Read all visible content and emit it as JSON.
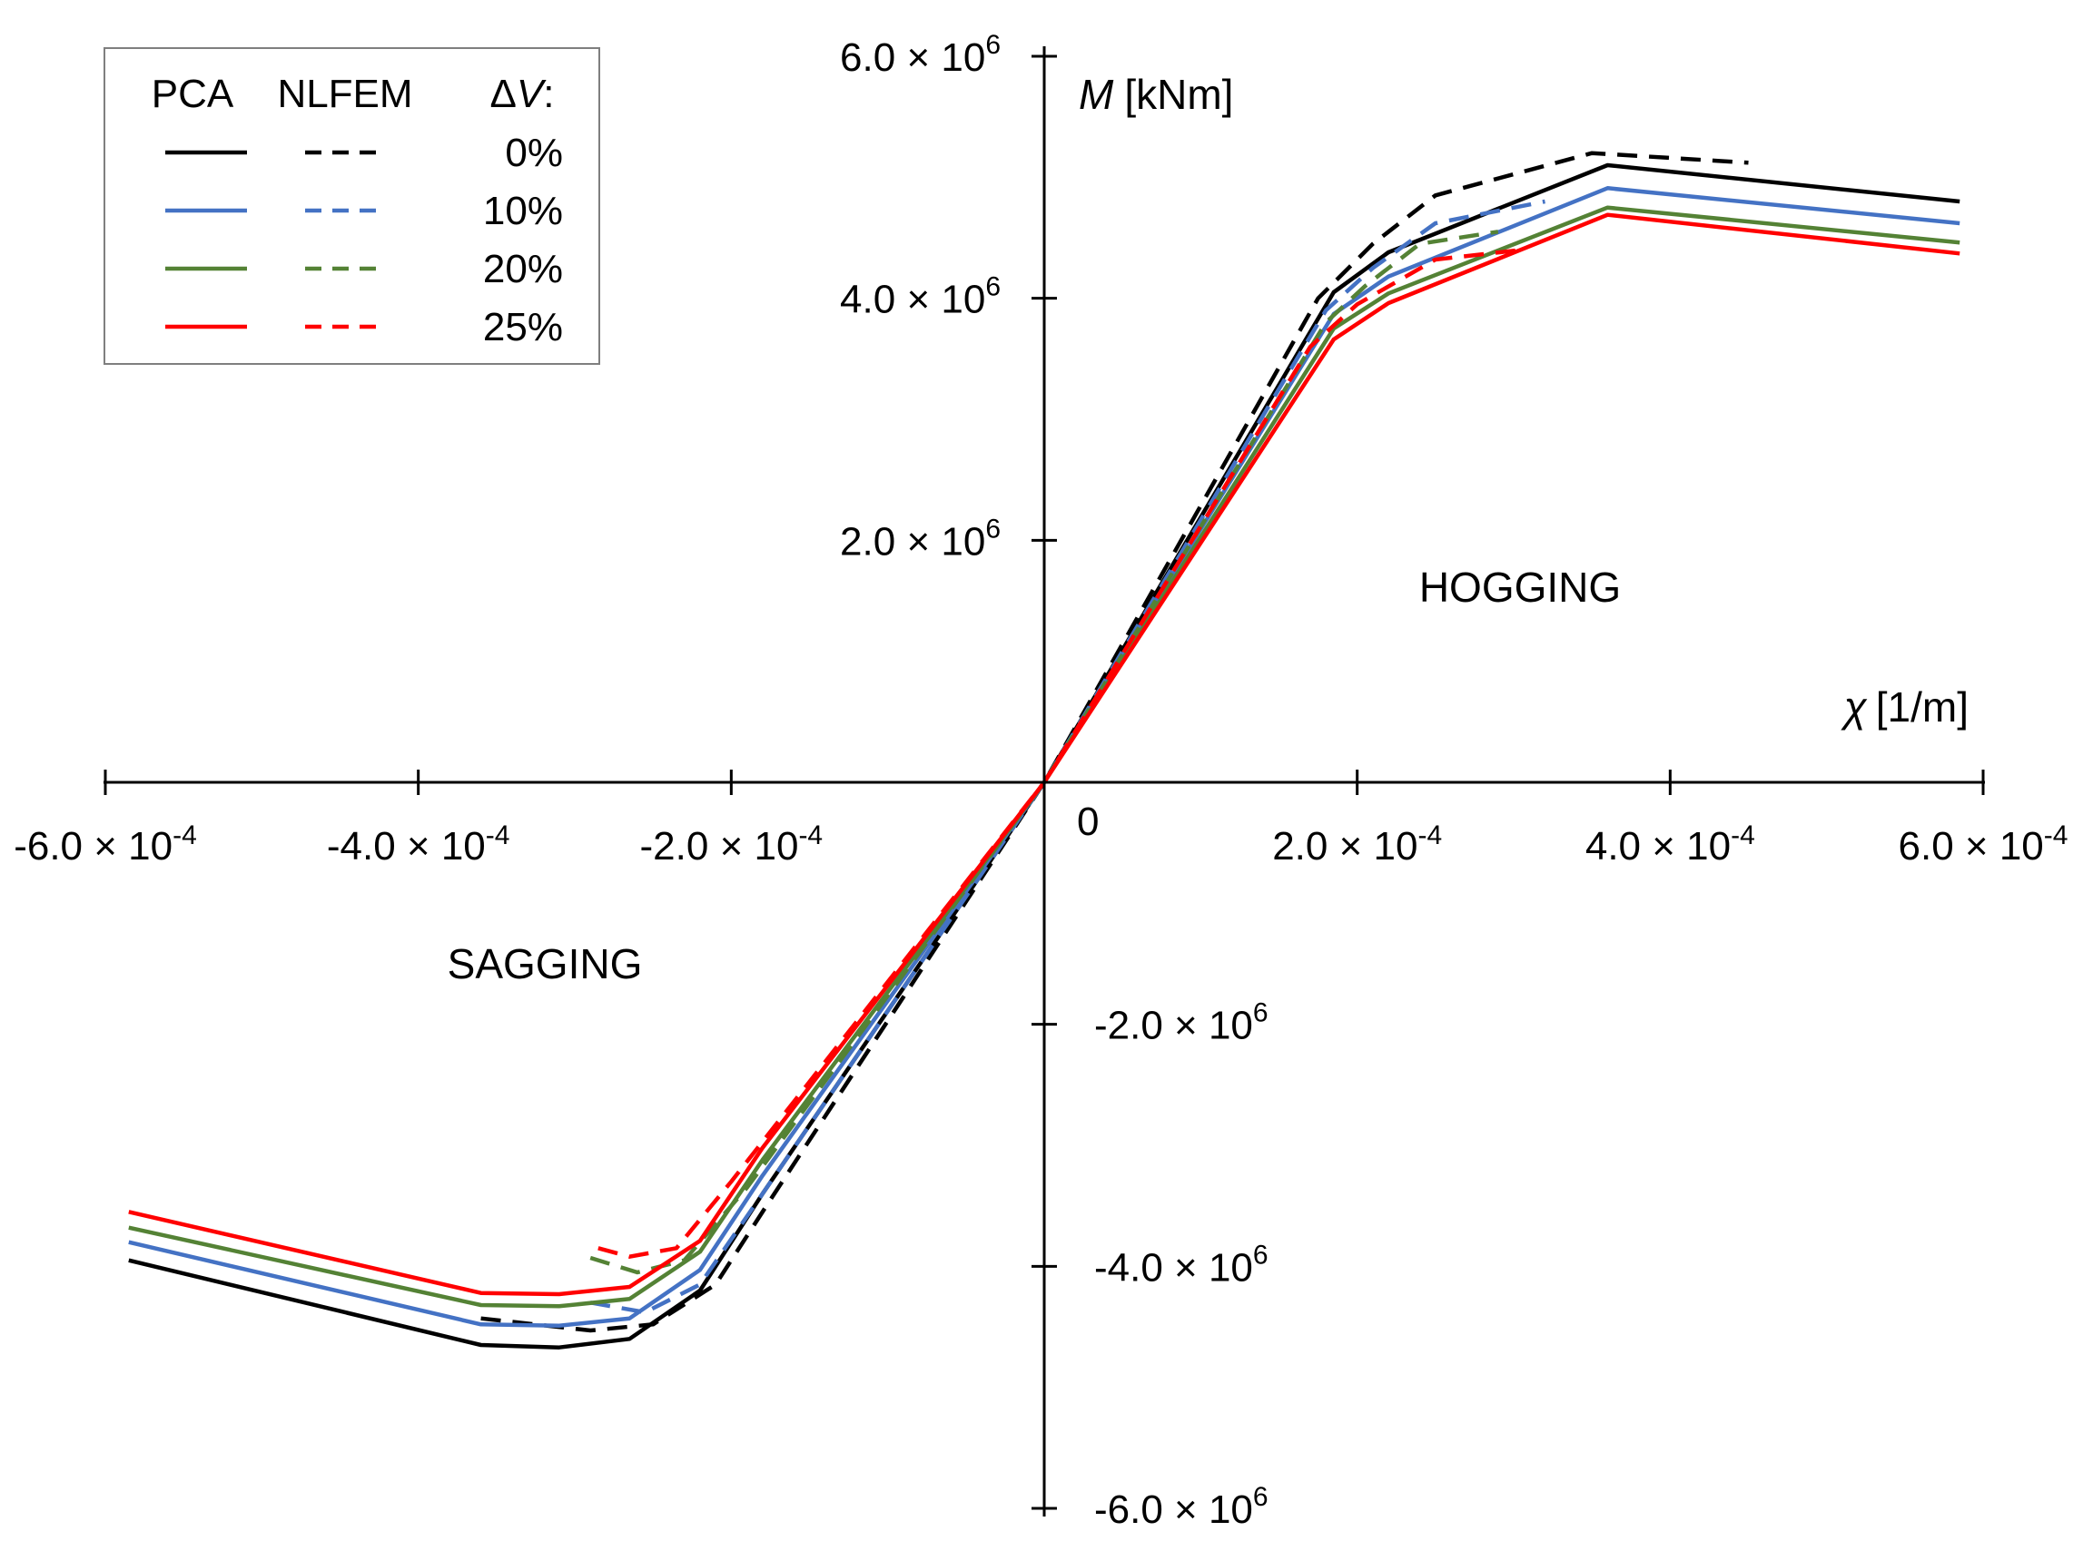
{
  "chart_data": {
    "type": "line",
    "x_unit_label_symbol": "χ",
    "x_unit_label_unit": "[1/m]",
    "y_unit_label_symbol": "M",
    "y_unit_label_unit": "[kNm]",
    "xlim": [
      -0.0006,
      0.0006
    ],
    "ylim": [
      -6000000,
      6000000
    ],
    "grid": false,
    "origin_label": "0",
    "x_ticks": [
      {
        "value": -0.0006,
        "mantissa": "-6.0 × 10",
        "exp": "-4"
      },
      {
        "value": -0.0004,
        "mantissa": "-4.0 × 10",
        "exp": "-4"
      },
      {
        "value": -0.0002,
        "mantissa": "-2.0 × 10",
        "exp": "-4"
      },
      {
        "value": 0.0002,
        "mantissa": "2.0 × 10",
        "exp": "-4"
      },
      {
        "value": 0.0004,
        "mantissa": "4.0 × 10",
        "exp": "-4"
      },
      {
        "value": 0.0006,
        "mantissa": "6.0 × 10",
        "exp": "-4"
      }
    ],
    "y_ticks": [
      {
        "value": 6000000,
        "mantissa": "6.0 × 10",
        "exp": "6"
      },
      {
        "value": 4000000,
        "mantissa": "4.0 × 10",
        "exp": "6"
      },
      {
        "value": 2000000,
        "mantissa": "2.0 × 10",
        "exp": "6"
      },
      {
        "value": -2000000,
        "mantissa": "-2.0 × 10",
        "exp": "6"
      },
      {
        "value": -4000000,
        "mantissa": "-4.0 × 10",
        "exp": "6"
      },
      {
        "value": -6000000,
        "mantissa": "-6.0 × 10",
        "exp": "6"
      }
    ],
    "annotations": [
      "HOGGING",
      "SAGGING"
    ],
    "legend": {
      "position": "top-left",
      "col_pca": "PCA",
      "col_nlfem": "NLFEM",
      "col_dv_symbol": "Δ",
      "col_dv_var": "V",
      "col_dv_suffix": ":"
    },
    "series": [
      {
        "name": "0%",
        "method": "PCA",
        "dv": "0%",
        "color": "#000000",
        "dash": "solid",
        "x": [
          -0.000585,
          -0.00036,
          -0.00031,
          -0.000265,
          -0.00022,
          -0.00018,
          0,
          0.000185,
          0.00022,
          0.00036,
          0.000585
        ],
        "y": [
          -3950000,
          -4650000,
          -4670000,
          -4600000,
          -4200000,
          -3400000,
          0,
          4050000,
          4380000,
          5100000,
          4800000
        ]
      },
      {
        "name": "0%",
        "method": "NLFEM",
        "dv": "0%",
        "color": "#000000",
        "dash": "dashed",
        "x": [
          -0.00036,
          -0.00029,
          -0.00025,
          -0.00021,
          -0.000175,
          0,
          0.000175,
          0.00021,
          0.00025,
          0.00035,
          0.00045
        ],
        "y": [
          -4430000,
          -4530000,
          -4480000,
          -4150000,
          -3450000,
          0,
          4000000,
          4450000,
          4850000,
          5200000,
          5120000
        ]
      },
      {
        "name": "10%",
        "method": "PCA",
        "dv": "10%",
        "color": "#4472C4",
        "dash": "solid",
        "x": [
          -0.000585,
          -0.00036,
          -0.00031,
          -0.000265,
          -0.00022,
          -0.00018,
          0,
          0.000185,
          0.00022,
          0.00036,
          0.000585
        ],
        "y": [
          -3800000,
          -4480000,
          -4490000,
          -4430000,
          -4030000,
          -3250000,
          0,
          3870000,
          4180000,
          4910000,
          4620000
        ]
      },
      {
        "name": "10%",
        "method": "NLFEM",
        "dv": "10%",
        "color": "#4472C4",
        "dash": "dashed",
        "x": [
          -0.00029,
          -0.000255,
          -0.00022,
          -0.00018,
          0,
          0.00018,
          0.00021,
          0.00025,
          0.00032
        ],
        "y": [
          -4300000,
          -4380000,
          -4150000,
          -3400000,
          0,
          3900000,
          4250000,
          4620000,
          4800000
        ]
      },
      {
        "name": "20%",
        "method": "PCA",
        "dv": "20%",
        "color": "#548235",
        "dash": "solid",
        "x": [
          -0.000585,
          -0.00036,
          -0.00031,
          -0.000265,
          -0.00022,
          -0.00018,
          0,
          0.000185,
          0.00022,
          0.00036,
          0.000585
        ],
        "y": [
          -3680000,
          -4320000,
          -4330000,
          -4270000,
          -3880000,
          -3120000,
          0,
          3750000,
          4040000,
          4750000,
          4460000
        ]
      },
      {
        "name": "20%",
        "method": "NLFEM",
        "dv": "20%",
        "color": "#548235",
        "dash": "dashed",
        "x": [
          -0.00029,
          -0.00026,
          -0.00023,
          -0.00019,
          0,
          0.00018,
          0.000205,
          0.00024,
          0.00029
        ],
        "y": [
          -3930000,
          -4050000,
          -3950000,
          -3350000,
          0,
          3800000,
          4100000,
          4450000,
          4550000
        ]
      },
      {
        "name": "25%",
        "method": "PCA",
        "dv": "25%",
        "color": "#FF0000",
        "dash": "solid",
        "x": [
          -0.000585,
          -0.00036,
          -0.00031,
          -0.000265,
          -0.00022,
          -0.00018,
          0,
          0.000185,
          0.00022,
          0.00036,
          0.000585
        ],
        "y": [
          -3550000,
          -4220000,
          -4230000,
          -4170000,
          -3790000,
          -3020000,
          0,
          3660000,
          3960000,
          4690000,
          4370000
        ]
      },
      {
        "name": "25%",
        "method": "NLFEM",
        "dv": "25%",
        "color": "#FF0000",
        "dash": "dashed",
        "x": [
          -0.000285,
          -0.000265,
          -0.000235,
          -0.0002,
          0,
          0.00017,
          0.0002,
          0.00025,
          0.000305
        ],
        "y": [
          -3850000,
          -3920000,
          -3850000,
          -3300000,
          0,
          3600000,
          3950000,
          4320000,
          4400000
        ]
      }
    ]
  }
}
